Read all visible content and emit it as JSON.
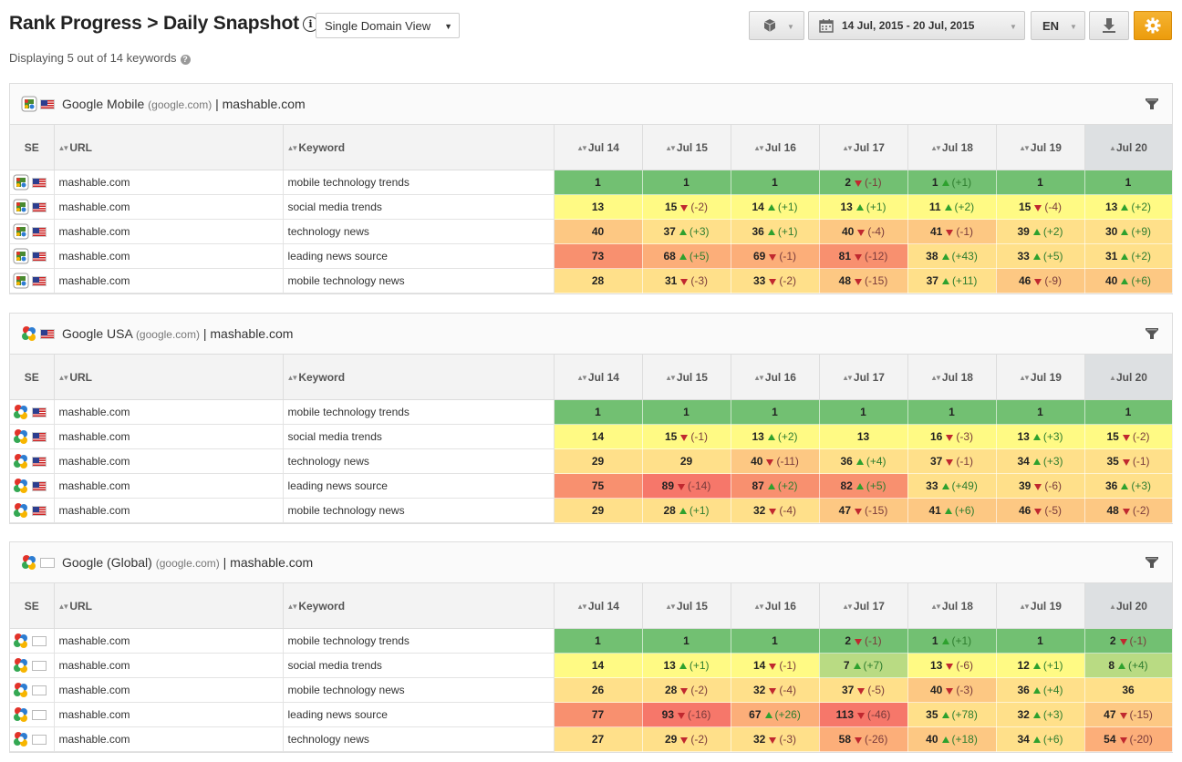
{
  "header": {
    "title": "Rank Progress > Daily Snapshot",
    "info_icon": "info-icon",
    "view_select": "Single Domain View",
    "date_range": "14 Jul, 2015 - 20 Jul, 2015",
    "language": "EN"
  },
  "subtitle": "Displaying 5 out of 14 keywords",
  "columns": {
    "se": "SE",
    "url": "URL",
    "keyword": "Keyword",
    "dates": [
      "Jul 14",
      "Jul 15",
      "Jul 16",
      "Jul 17",
      "Jul 18",
      "Jul 19",
      "Jul 20"
    ]
  },
  "colors": {
    "green": "#72c072",
    "lightgreen": "#b9db83",
    "yellow": "#fffa84",
    "lightorange": "#ffe08a",
    "orange": "#fdc883",
    "darkorange": "#fcae79",
    "red": "#f8906f",
    "deepred": "#f6776a",
    "accent": "#ef9f12"
  },
  "panels": [
    {
      "engine": "Google Mobile",
      "domain": "(google.com)",
      "separator": "|",
      "site": "mashable.com",
      "flag": "us",
      "icon": "google-mobile-icon",
      "rows": [
        {
          "url": "mashable.com",
          "keyword": "mobile technology trends",
          "cells": [
            {
              "r": "1",
              "c": "green"
            },
            {
              "r": "1",
              "c": "green"
            },
            {
              "r": "1",
              "c": "green"
            },
            {
              "r": "2",
              "d": "(-1)",
              "dir": "down",
              "c": "green"
            },
            {
              "r": "1",
              "d": "(+1)",
              "dir": "up",
              "c": "green"
            },
            {
              "r": "1",
              "c": "green"
            },
            {
              "r": "1",
              "c": "green"
            }
          ]
        },
        {
          "url": "mashable.com",
          "keyword": "social media trends",
          "cells": [
            {
              "r": "13",
              "c": "yellow"
            },
            {
              "r": "15",
              "d": "(-2)",
              "dir": "down",
              "c": "yellow"
            },
            {
              "r": "14",
              "d": "(+1)",
              "dir": "up",
              "c": "yellow"
            },
            {
              "r": "13",
              "d": "(+1)",
              "dir": "up",
              "c": "yellow"
            },
            {
              "r": "11",
              "d": "(+2)",
              "dir": "up",
              "c": "yellow"
            },
            {
              "r": "15",
              "d": "(-4)",
              "dir": "down",
              "c": "yellow"
            },
            {
              "r": "13",
              "d": "(+2)",
              "dir": "up",
              "c": "yellow"
            }
          ]
        },
        {
          "url": "mashable.com",
          "keyword": "technology news",
          "cells": [
            {
              "r": "40",
              "c": "orange"
            },
            {
              "r": "37",
              "d": "(+3)",
              "dir": "up",
              "c": "lightorange"
            },
            {
              "r": "36",
              "d": "(+1)",
              "dir": "up",
              "c": "lightorange"
            },
            {
              "r": "40",
              "d": "(-4)",
              "dir": "down",
              "c": "orange"
            },
            {
              "r": "41",
              "d": "(-1)",
              "dir": "down",
              "c": "orange"
            },
            {
              "r": "39",
              "d": "(+2)",
              "dir": "up",
              "c": "lightorange"
            },
            {
              "r": "30",
              "d": "(+9)",
              "dir": "up",
              "c": "lightorange"
            }
          ]
        },
        {
          "url": "mashable.com",
          "keyword": "leading news source",
          "cells": [
            {
              "r": "73",
              "c": "red"
            },
            {
              "r": "68",
              "d": "(+5)",
              "dir": "up",
              "c": "darkorange"
            },
            {
              "r": "69",
              "d": "(-1)",
              "dir": "down",
              "c": "darkorange"
            },
            {
              "r": "81",
              "d": "(-12)",
              "dir": "down",
              "c": "red"
            },
            {
              "r": "38",
              "d": "(+43)",
              "dir": "up",
              "c": "lightorange"
            },
            {
              "r": "33",
              "d": "(+5)",
              "dir": "up",
              "c": "lightorange"
            },
            {
              "r": "31",
              "d": "(+2)",
              "dir": "up",
              "c": "lightorange"
            }
          ]
        },
        {
          "url": "mashable.com",
          "keyword": "mobile technology news",
          "cells": [
            {
              "r": "28",
              "c": "lightorange"
            },
            {
              "r": "31",
              "d": "(-3)",
              "dir": "down",
              "c": "lightorange"
            },
            {
              "r": "33",
              "d": "(-2)",
              "dir": "down",
              "c": "lightorange"
            },
            {
              "r": "48",
              "d": "(-15)",
              "dir": "down",
              "c": "orange"
            },
            {
              "r": "37",
              "d": "(+11)",
              "dir": "up",
              "c": "lightorange"
            },
            {
              "r": "46",
              "d": "(-9)",
              "dir": "down",
              "c": "orange"
            },
            {
              "r": "40",
              "d": "(+6)",
              "dir": "up",
              "c": "orange"
            }
          ]
        }
      ]
    },
    {
      "engine": "Google USA",
      "domain": "(google.com)",
      "separator": "|",
      "site": "mashable.com",
      "flag": "us",
      "icon": "google-icon",
      "rows": [
        {
          "url": "mashable.com",
          "keyword": "mobile technology trends",
          "cells": [
            {
              "r": "1",
              "c": "green"
            },
            {
              "r": "1",
              "c": "green"
            },
            {
              "r": "1",
              "c": "green"
            },
            {
              "r": "1",
              "c": "green"
            },
            {
              "r": "1",
              "c": "green"
            },
            {
              "r": "1",
              "c": "green"
            },
            {
              "r": "1",
              "c": "green"
            }
          ]
        },
        {
          "url": "mashable.com",
          "keyword": "social media trends",
          "cells": [
            {
              "r": "14",
              "c": "yellow"
            },
            {
              "r": "15",
              "d": "(-1)",
              "dir": "down",
              "c": "yellow"
            },
            {
              "r": "13",
              "d": "(+2)",
              "dir": "up",
              "c": "yellow"
            },
            {
              "r": "13",
              "c": "yellow"
            },
            {
              "r": "16",
              "d": "(-3)",
              "dir": "down",
              "c": "yellow"
            },
            {
              "r": "13",
              "d": "(+3)",
              "dir": "up",
              "c": "yellow"
            },
            {
              "r": "15",
              "d": "(-2)",
              "dir": "down",
              "c": "yellow"
            }
          ]
        },
        {
          "url": "mashable.com",
          "keyword": "technology news",
          "cells": [
            {
              "r": "29",
              "c": "lightorange"
            },
            {
              "r": "29",
              "c": "lightorange"
            },
            {
              "r": "40",
              "d": "(-11)",
              "dir": "down",
              "c": "orange"
            },
            {
              "r": "36",
              "d": "(+4)",
              "dir": "up",
              "c": "lightorange"
            },
            {
              "r": "37",
              "d": "(-1)",
              "dir": "down",
              "c": "lightorange"
            },
            {
              "r": "34",
              "d": "(+3)",
              "dir": "up",
              "c": "lightorange"
            },
            {
              "r": "35",
              "d": "(-1)",
              "dir": "down",
              "c": "lightorange"
            }
          ]
        },
        {
          "url": "mashable.com",
          "keyword": "leading news source",
          "cells": [
            {
              "r": "75",
              "c": "red"
            },
            {
              "r": "89",
              "d": "(-14)",
              "dir": "down",
              "c": "deepred"
            },
            {
              "r": "87",
              "d": "(+2)",
              "dir": "up",
              "c": "red"
            },
            {
              "r": "82",
              "d": "(+5)",
              "dir": "up",
              "c": "red"
            },
            {
              "r": "33",
              "d": "(+49)",
              "dir": "up",
              "c": "lightorange"
            },
            {
              "r": "39",
              "d": "(-6)",
              "dir": "down",
              "c": "lightorange"
            },
            {
              "r": "36",
              "d": "(+3)",
              "dir": "up",
              "c": "lightorange"
            }
          ]
        },
        {
          "url": "mashable.com",
          "keyword": "mobile technology news",
          "cells": [
            {
              "r": "29",
              "c": "lightorange"
            },
            {
              "r": "28",
              "d": "(+1)",
              "dir": "up",
              "c": "lightorange"
            },
            {
              "r": "32",
              "d": "(-4)",
              "dir": "down",
              "c": "lightorange"
            },
            {
              "r": "47",
              "d": "(-15)",
              "dir": "down",
              "c": "orange"
            },
            {
              "r": "41",
              "d": "(+6)",
              "dir": "up",
              "c": "orange"
            },
            {
              "r": "46",
              "d": "(-5)",
              "dir": "down",
              "c": "orange"
            },
            {
              "r": "48",
              "d": "(-2)",
              "dir": "down",
              "c": "orange"
            }
          ]
        }
      ]
    },
    {
      "engine": "Google (Global)",
      "domain": "(google.com)",
      "separator": "|",
      "site": "mashable.com",
      "flag": "none",
      "icon": "google-icon",
      "rows": [
        {
          "url": "mashable.com",
          "keyword": "mobile technology trends",
          "cells": [
            {
              "r": "1",
              "c": "green"
            },
            {
              "r": "1",
              "c": "green"
            },
            {
              "r": "1",
              "c": "green"
            },
            {
              "r": "2",
              "d": "(-1)",
              "dir": "down",
              "c": "green"
            },
            {
              "r": "1",
              "d": "(+1)",
              "dir": "up",
              "c": "green"
            },
            {
              "r": "1",
              "c": "green"
            },
            {
              "r": "2",
              "d": "(-1)",
              "dir": "down",
              "c": "green"
            }
          ]
        },
        {
          "url": "mashable.com",
          "keyword": "social media trends",
          "cells": [
            {
              "r": "14",
              "c": "yellow"
            },
            {
              "r": "13",
              "d": "(+1)",
              "dir": "up",
              "c": "yellow"
            },
            {
              "r": "14",
              "d": "(-1)",
              "dir": "down",
              "c": "yellow"
            },
            {
              "r": "7",
              "d": "(+7)",
              "dir": "up",
              "c": "lightgreen"
            },
            {
              "r": "13",
              "d": "(-6)",
              "dir": "down",
              "c": "yellow"
            },
            {
              "r": "12",
              "d": "(+1)",
              "dir": "up",
              "c": "yellow"
            },
            {
              "r": "8",
              "d": "(+4)",
              "dir": "up",
              "c": "lightgreen"
            }
          ]
        },
        {
          "url": "mashable.com",
          "keyword": "mobile technology news",
          "cells": [
            {
              "r": "26",
              "c": "lightorange"
            },
            {
              "r": "28",
              "d": "(-2)",
              "dir": "down",
              "c": "lightorange"
            },
            {
              "r": "32",
              "d": "(-4)",
              "dir": "down",
              "c": "lightorange"
            },
            {
              "r": "37",
              "d": "(-5)",
              "dir": "down",
              "c": "lightorange"
            },
            {
              "r": "40",
              "d": "(-3)",
              "dir": "down",
              "c": "orange"
            },
            {
              "r": "36",
              "d": "(+4)",
              "dir": "up",
              "c": "lightorange"
            },
            {
              "r": "36",
              "c": "lightorange"
            }
          ]
        },
        {
          "url": "mashable.com",
          "keyword": "leading news source",
          "cells": [
            {
              "r": "77",
              "c": "red"
            },
            {
              "r": "93",
              "d": "(-16)",
              "dir": "down",
              "c": "deepred"
            },
            {
              "r": "67",
              "d": "(+26)",
              "dir": "up",
              "c": "darkorange"
            },
            {
              "r": "113",
              "d": "(-46)",
              "dir": "down",
              "c": "deepred"
            },
            {
              "r": "35",
              "d": "(+78)",
              "dir": "up",
              "c": "lightorange"
            },
            {
              "r": "32",
              "d": "(+3)",
              "dir": "up",
              "c": "lightorange"
            },
            {
              "r": "47",
              "d": "(-15)",
              "dir": "down",
              "c": "orange"
            }
          ]
        },
        {
          "url": "mashable.com",
          "keyword": "technology news",
          "cells": [
            {
              "r": "27",
              "c": "lightorange"
            },
            {
              "r": "29",
              "d": "(-2)",
              "dir": "down",
              "c": "lightorange"
            },
            {
              "r": "32",
              "d": "(-3)",
              "dir": "down",
              "c": "lightorange"
            },
            {
              "r": "58",
              "d": "(-26)",
              "dir": "down",
              "c": "darkorange"
            },
            {
              "r": "40",
              "d": "(+18)",
              "dir": "up",
              "c": "orange"
            },
            {
              "r": "34",
              "d": "(+6)",
              "dir": "up",
              "c": "lightorange"
            },
            {
              "r": "54",
              "d": "(-20)",
              "dir": "down",
              "c": "darkorange"
            }
          ]
        }
      ]
    }
  ]
}
